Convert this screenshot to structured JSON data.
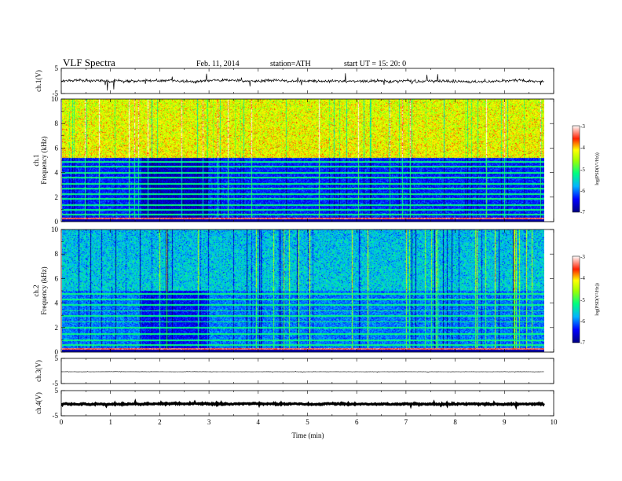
{
  "header": {
    "title": "VLF  Spectra",
    "date": "Feb. 11, 2014",
    "station": "station=ATH",
    "start": "start  UT  =   15: 20: 0"
  },
  "chart_data": {
    "type": "spectrogram",
    "x": {
      "label": "Time  (min)",
      "range": [
        0,
        10
      ],
      "ticks": [
        "0",
        "1",
        "2",
        "3",
        "4",
        "5",
        "6",
        "7",
        "8",
        "9",
        "10"
      ],
      "data_end": 9.8
    },
    "panels": [
      {
        "name": "ch.1 waveform",
        "ylabel": "ch.1(V)",
        "ylim": [
          -5,
          5
        ],
        "yticks": [
          "5",
          "-5"
        ],
        "trace": {
          "mean": 0,
          "noise": 0.55,
          "spikes": 1.8
        }
      },
      {
        "name": "ch.1 spectrogram",
        "ylabel_top": "ch.1",
        "ylabel": "Frequency  (kHz)",
        "ylim": [
          0,
          10
        ],
        "yticks": [
          "0",
          "2",
          "4",
          "6",
          "8",
          "10"
        ],
        "colorbar": {
          "label": "log(PSD(V²/Hz))",
          "range": [
            -7,
            -3
          ],
          "ticks": [
            "-3",
            "-4",
            "-5",
            "-6",
            "-7"
          ]
        },
        "upper_band_level": -4.2,
        "lower_band_level": -6.3,
        "band_boundary_khz": 5.2,
        "quiet_interval_min": [
          1.6,
          2.95
        ],
        "line_levels_khz": [
          0.3,
          0.6,
          1.0,
          1.4,
          1.9,
          2.3,
          2.7,
          3.1,
          3.6,
          4.0,
          4.5,
          4.9
        ]
      },
      {
        "name": "ch.2 spectrogram",
        "ylabel_top": "ch.2",
        "ylabel": "Frequency  (kHz)",
        "ylim": [
          0,
          10
        ],
        "yticks": [
          "0",
          "2",
          "4",
          "6",
          "8",
          "10"
        ],
        "colorbar": {
          "label": "log(PSD(V²/Hz))",
          "range": [
            -7,
            -3
          ],
          "ticks": [
            "-3",
            "-4",
            "-5",
            "-6",
            "-7"
          ]
        },
        "upper_band_level": -5.6,
        "lower_band_level": -6.0,
        "band_boundary_khz": 5.0,
        "quiet_interval_min": [
          1.6,
          2.95
        ],
        "line_levels_khz": [
          0.3,
          0.6,
          1.0,
          1.5,
          2.0,
          2.5,
          3.0,
          3.4,
          3.9,
          4.3,
          4.8
        ]
      },
      {
        "name": "ch.3 waveform",
        "ylabel": "ch.3(V)",
        "ylim": [
          -5,
          5
        ],
        "yticks": [
          "5",
          "-5"
        ],
        "trace": {
          "mean": -0.3,
          "noise": 0.05,
          "spikes": 0.1
        }
      },
      {
        "name": "ch.4 waveform",
        "ylabel": "ch.4(V)",
        "ylim": [
          -5,
          5
        ],
        "yticks": [
          "5",
          "-5"
        ],
        "trace": {
          "mean": -0.3,
          "noise": 0.25,
          "spikes": 0.3
        }
      }
    ]
  }
}
